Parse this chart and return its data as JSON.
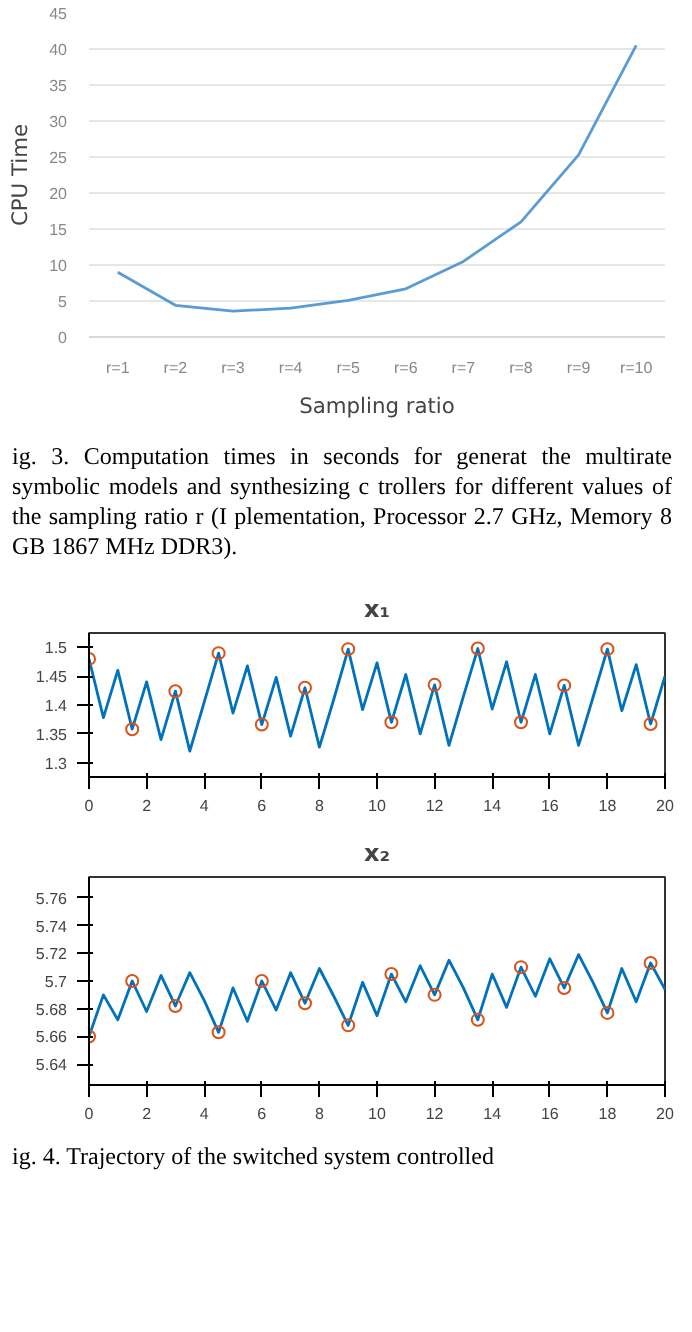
{
  "chart_data": [
    {
      "type": "line",
      "xlabel": "Sampling ratio",
      "ylabel": "CPU Time",
      "categories": [
        "r=1",
        "r=2",
        "r=3",
        "r=4",
        "r=5",
        "r=6",
        "r=7",
        "r=8",
        "r=9",
        "r=10"
      ],
      "series": [
        {
          "color": "#5b9bd5",
          "values": [
            9,
            4.4,
            3.6,
            4,
            5.1,
            6.7,
            10.5,
            16,
            25.3,
            40.5
          ]
        }
      ],
      "ylim": [
        0,
        45
      ],
      "yticks": [
        0,
        5,
        10,
        15,
        20,
        25,
        30,
        35,
        40,
        45
      ],
      "grid": "y",
      "annotations": [
        "ig. 3. Computation times in seconds for generat the multirate symbolic models and synthesizing c trollers for different values of the sampling ratio r (I plementation, Processor 2.7 GHz, Memory 8 GB 1867 MHz DDR3)."
      ]
    },
    {
      "type": "line",
      "title": "x₁",
      "xlim": [
        0,
        20
      ],
      "xticks": [
        0,
        2,
        4,
        6,
        8,
        10,
        12,
        14,
        16,
        18,
        20
      ],
      "ylim": [
        1.275,
        1.525
      ],
      "yticks": [
        1.3,
        1.35,
        1.4,
        1.45,
        1.5
      ],
      "series": [
        {
          "type": "line",
          "color": "#0072bd",
          "x": [
            0,
            0.5,
            1,
            1.5,
            2,
            2.5,
            3,
            3.5,
            4,
            4.5,
            5,
            5.5,
            6,
            6.5,
            7,
            7.5,
            8,
            8.5,
            9,
            9.5,
            10,
            10.5,
            11,
            11.5,
            12,
            12.5,
            13,
            13.5,
            14,
            14.5,
            15,
            15.5,
            16,
            16.5,
            17,
            17.5,
            18,
            18.5,
            19,
            19.5,
            20
          ],
          "values": [
            1.48,
            1.378,
            1.46,
            1.358,
            1.44,
            1.34,
            1.424,
            1.32,
            1.405,
            1.49,
            1.386,
            1.468,
            1.366,
            1.448,
            1.346,
            1.43,
            1.327,
            1.41,
            1.497,
            1.392,
            1.473,
            1.37,
            1.453,
            1.35,
            1.435,
            1.33,
            1.415,
            1.498,
            1.393,
            1.475,
            1.37,
            1.453,
            1.35,
            1.434,
            1.33,
            1.413,
            1.497,
            1.39,
            1.47,
            1.367,
            1.45
          ]
        },
        {
          "type": "scatter",
          "marker": "circle",
          "color": "#d95319",
          "x": [
            0,
            1.5,
            3,
            4.5,
            6,
            7.5,
            9,
            10.5,
            12,
            13.5,
            15,
            16.5,
            18,
            19.5
          ],
          "values": [
            1.48,
            1.358,
            1.424,
            1.49,
            1.366,
            1.43,
            1.497,
            1.37,
            1.435,
            1.498,
            1.37,
            1.434,
            1.497,
            1.367
          ]
        }
      ]
    },
    {
      "type": "line",
      "title": "x₂",
      "xlim": [
        0,
        20
      ],
      "xticks": [
        0,
        2,
        4,
        6,
        8,
        10,
        12,
        14,
        16,
        18,
        20
      ],
      "ylim": [
        5.625,
        5.775
      ],
      "yticks": [
        5.64,
        5.66,
        5.68,
        5.7,
        5.72,
        5.74,
        5.76
      ],
      "series": [
        {
          "type": "line",
          "color": "#0072bd",
          "x": [
            0,
            0.5,
            1,
            1.5,
            2,
            2.5,
            3,
            3.5,
            4,
            4.5,
            5,
            5.5,
            6,
            6.5,
            7,
            7.5,
            8,
            8.5,
            9,
            9.5,
            10,
            10.5,
            11,
            11.5,
            12,
            12.5,
            13,
            13.5,
            14,
            14.5,
            15,
            15.5,
            16,
            16.5,
            17,
            17.5,
            18,
            18.5,
            19,
            19.5,
            20
          ],
          "values": [
            5.66,
            5.69,
            5.672,
            5.7,
            5.678,
            5.704,
            5.682,
            5.706,
            5.686,
            5.663,
            5.695,
            5.671,
            5.7,
            5.679,
            5.706,
            5.684,
            5.709,
            5.689,
            5.668,
            5.699,
            5.675,
            5.705,
            5.685,
            5.711,
            5.69,
            5.715,
            5.695,
            5.672,
            5.705,
            5.681,
            5.71,
            5.689,
            5.716,
            5.695,
            5.719,
            5.699,
            5.677,
            5.709,
            5.685,
            5.713,
            5.694
          ]
        },
        {
          "type": "scatter",
          "marker": "circle",
          "color": "#d95319",
          "x": [
            0,
            1.5,
            3,
            4.5,
            6,
            7.5,
            9,
            10.5,
            12,
            13.5,
            15,
            16.5,
            18,
            19.5
          ],
          "values": [
            5.66,
            5.7,
            5.682,
            5.663,
            5.7,
            5.684,
            5.668,
            5.705,
            5.69,
            5.672,
            5.71,
            5.695,
            5.677,
            5.713
          ]
        }
      ],
      "annotations": [
        "ig. 4. Trajectory of the switched system controlled"
      ]
    }
  ]
}
